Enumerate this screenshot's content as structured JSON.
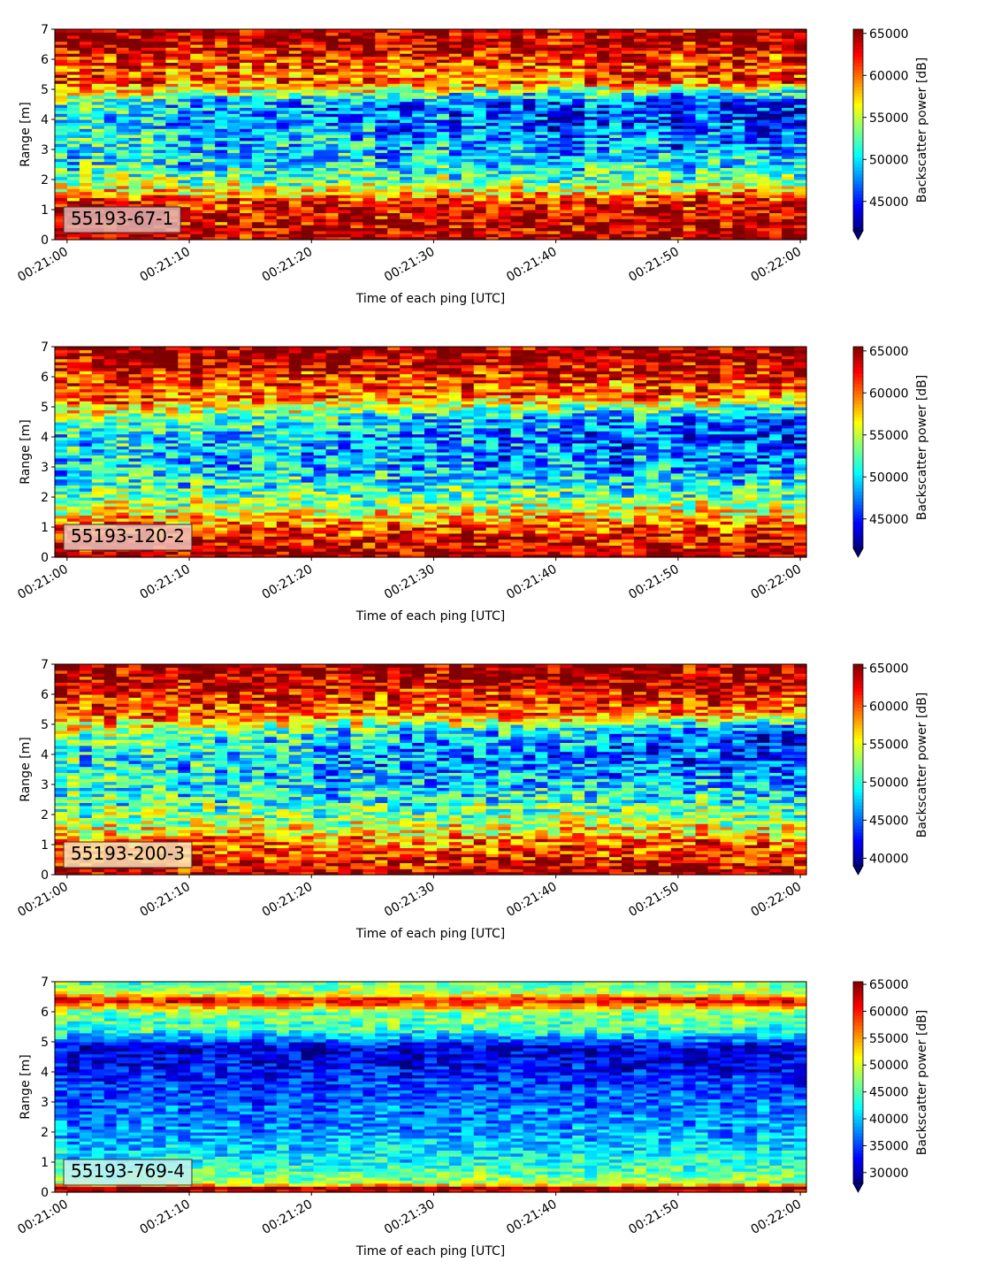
{
  "colormap": {
    "name": "jet",
    "stops": [
      "#00007f",
      "#0000ff",
      "#007fff",
      "#00ffff",
      "#7fff7f",
      "#ffff00",
      "#ff7f00",
      "#ff0000",
      "#7f0000"
    ]
  },
  "chart_data": [
    {
      "type": "heatmap",
      "panel_label": "55193-67-1",
      "label_box_color": "#e0b4b4",
      "xlabel": "Time of each ping [UTC]",
      "ylabel": "Range [m]",
      "colorbar_label": "Backscatter power [dB]",
      "x_ticks": [
        "00:21:00",
        "00:21:10",
        "00:21:20",
        "00:21:30",
        "00:21:40",
        "00:21:50",
        "00:22:00"
      ],
      "xlim_seconds": [
        -1,
        60.5
      ],
      "y_ticks": [
        0,
        1,
        2,
        3,
        4,
        5,
        6,
        7
      ],
      "ylim": [
        0,
        7
      ],
      "colorbar_ticks": [
        45000,
        50000,
        55000,
        60000,
        65000
      ],
      "clim": [
        41500,
        65500
      ],
      "colorbar_extend": "min",
      "grid": false,
      "profile": {
        "range": [
          0,
          0.3,
          1.2,
          1.6,
          2.0,
          2.6,
          3.2,
          4.0,
          4.6,
          5.0,
          5.2,
          6.0,
          6.4,
          7.0
        ],
        "start_values": [
          65000,
          64000,
          63000,
          57000,
          53000,
          50000,
          51000,
          50000,
          51000,
          58000,
          60000,
          61000,
          64000,
          65000
        ],
        "end_values": [
          65000,
          64000,
          63000,
          58000,
          52000,
          50000,
          47000,
          44000,
          45000,
          52000,
          60000,
          62000,
          64000,
          65000
        ]
      },
      "noise_amplitude": 5000
    },
    {
      "type": "heatmap",
      "panel_label": "55193-120-2",
      "label_box_color": "#f1c6bd",
      "xlabel": "Time of each ping [UTC]",
      "ylabel": "Range [m]",
      "colorbar_label": "Backscatter power [dB]",
      "x_ticks": [
        "00:21:00",
        "00:21:10",
        "00:21:20",
        "00:21:30",
        "00:21:40",
        "00:21:50",
        "00:22:00"
      ],
      "xlim_seconds": [
        -1,
        60.5
      ],
      "y_ticks": [
        0,
        1,
        2,
        3,
        4,
        5,
        6,
        7
      ],
      "ylim": [
        0,
        7
      ],
      "colorbar_ticks": [
        45000,
        50000,
        55000,
        60000,
        65000
      ],
      "clim": [
        41500,
        65500
      ],
      "colorbar_extend": "min",
      "grid": false,
      "profile": {
        "range": [
          0,
          0.3,
          1.0,
          1.5,
          2.0,
          2.6,
          3.2,
          4.0,
          4.6,
          5.0,
          5.3,
          6.0,
          6.4,
          7.0
        ],
        "start_values": [
          65000,
          64000,
          61000,
          56000,
          53000,
          51000,
          50000,
          51000,
          54000,
          57000,
          60000,
          62000,
          64000,
          65000
        ],
        "end_values": [
          65000,
          64000,
          61000,
          57000,
          53000,
          50000,
          47000,
          45000,
          46000,
          52000,
          59000,
          62000,
          64000,
          65000
        ]
      },
      "noise_amplitude": 5000
    },
    {
      "type": "heatmap",
      "panel_label": "55193-200-3",
      "label_box_color": "#fbe3b8",
      "xlabel": "Time of each ping [UTC]",
      "ylabel": "Range [m]",
      "colorbar_label": "Backscatter power [dB]",
      "x_ticks": [
        "00:21:00",
        "00:21:10",
        "00:21:20",
        "00:21:30",
        "00:21:40",
        "00:21:50",
        "00:22:00"
      ],
      "xlim_seconds": [
        -1,
        60.5
      ],
      "y_ticks": [
        0,
        1,
        2,
        3,
        4,
        5,
        6,
        7
      ],
      "ylim": [
        0,
        7
      ],
      "colorbar_ticks": [
        40000,
        45000,
        50000,
        55000,
        60000,
        65000
      ],
      "clim": [
        39000,
        65500
      ],
      "colorbar_extend": "min",
      "grid": false,
      "profile": {
        "range": [
          0,
          0.3,
          1.0,
          1.5,
          2.0,
          2.6,
          3.2,
          4.0,
          4.6,
          5.0,
          5.3,
          6.0,
          6.4,
          7.0
        ],
        "start_values": [
          65000,
          63000,
          60000,
          55000,
          52000,
          50000,
          49000,
          50000,
          52000,
          56000,
          60000,
          62000,
          64000,
          65000
        ],
        "end_values": [
          65000,
          63000,
          60000,
          56000,
          52000,
          49000,
          46000,
          43000,
          43000,
          48000,
          58000,
          62000,
          64000,
          65000
        ]
      },
      "noise_amplitude": 5500
    },
    {
      "type": "heatmap",
      "panel_label": "55193-769-4",
      "label_box_color": "#c8f0f2",
      "xlabel": "Time of each ping [UTC]",
      "ylabel": "Range [m]",
      "colorbar_label": "Backscatter power [dB]",
      "x_ticks": [
        "00:21:00",
        "00:21:10",
        "00:21:20",
        "00:21:30",
        "00:21:40",
        "00:21:50",
        "00:22:00"
      ],
      "xlim_seconds": [
        -1,
        60.5
      ],
      "y_ticks": [
        0,
        1,
        2,
        3,
        4,
        5,
        6,
        7
      ],
      "ylim": [
        0,
        7
      ],
      "colorbar_ticks": [
        30000,
        35000,
        40000,
        45000,
        50000,
        55000,
        60000,
        65000
      ],
      "clim": [
        28000,
        65500
      ],
      "colorbar_extend": "min",
      "grid": false,
      "profile": {
        "range": [
          0,
          0.15,
          0.3,
          0.6,
          1.0,
          1.5,
          2.0,
          3.0,
          3.6,
          4.2,
          4.8,
          5.4,
          6.0,
          6.4,
          6.6,
          7.0
        ],
        "start_values": [
          62000,
          65000,
          48000,
          45000,
          42000,
          40000,
          38000,
          36000,
          35000,
          33000,
          32000,
          44000,
          47000,
          63000,
          50000,
          45000
        ],
        "end_values": [
          62000,
          65000,
          48000,
          46000,
          43000,
          41000,
          39000,
          37000,
          35000,
          32000,
          31000,
          44000,
          47000,
          63000,
          50000,
          45000
        ]
      },
      "noise_amplitude": 4500
    }
  ]
}
